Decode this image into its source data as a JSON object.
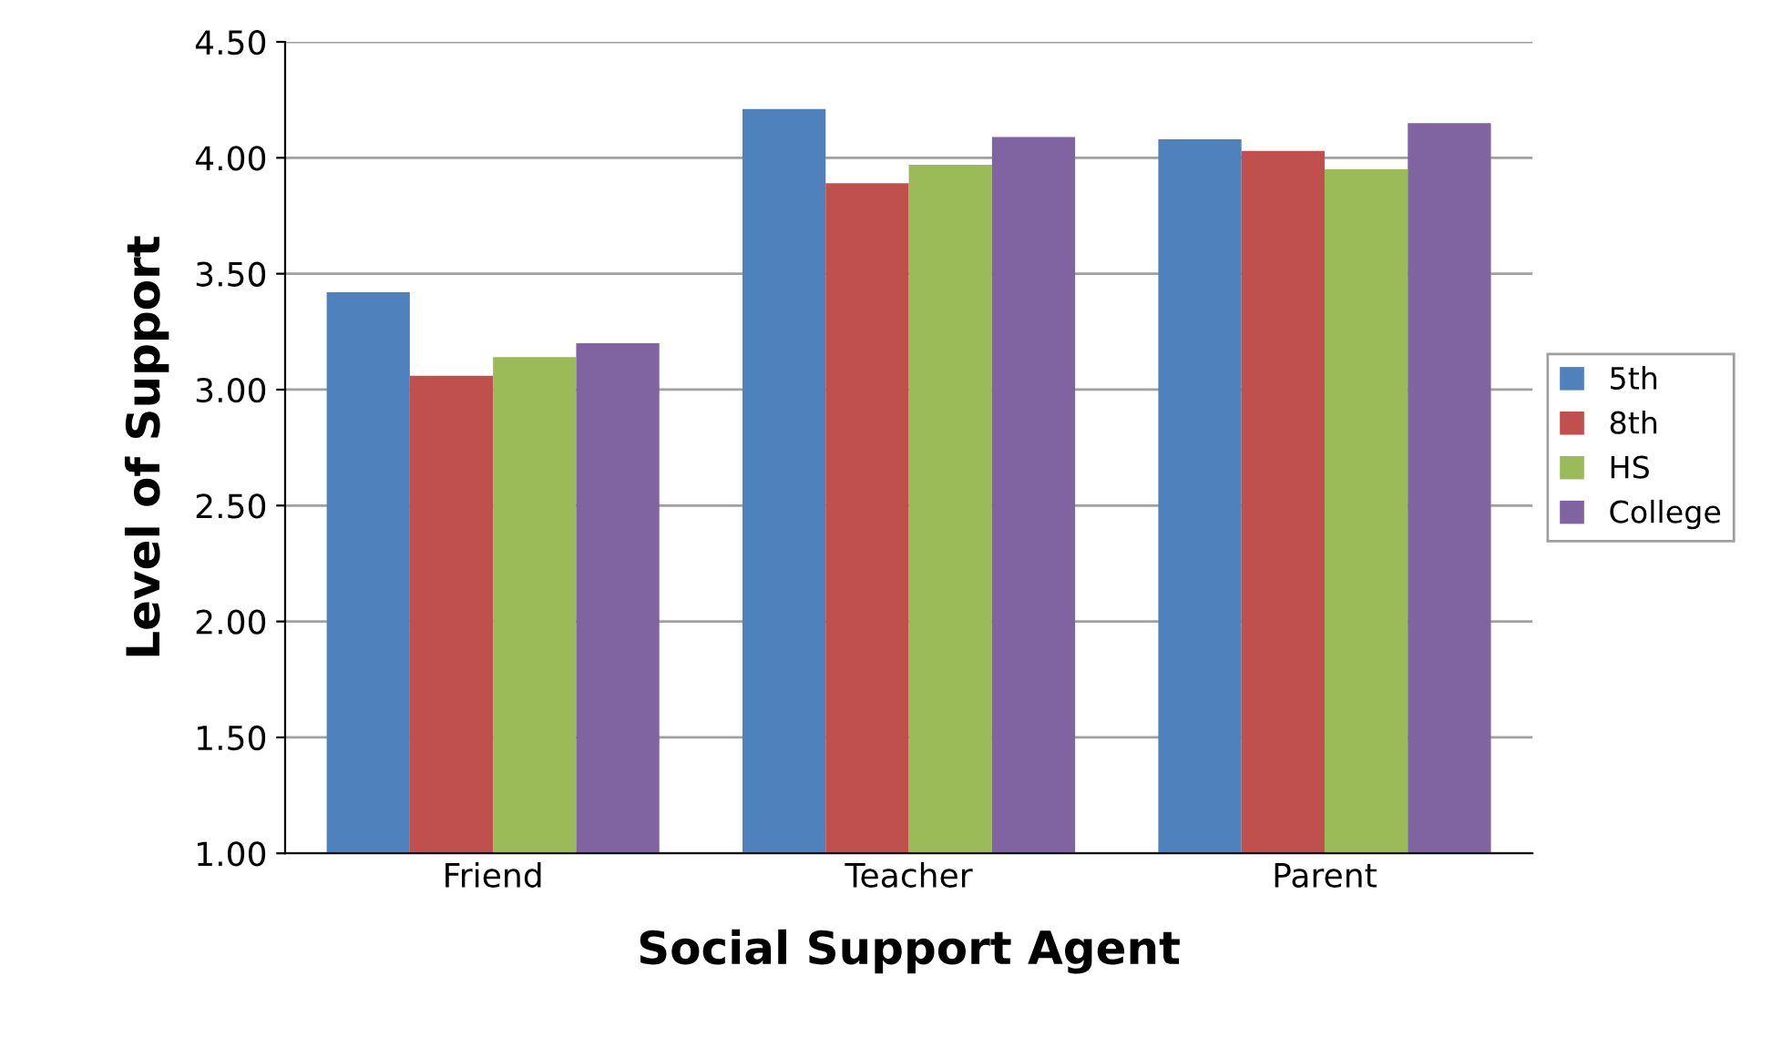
{
  "chart_data": {
    "type": "bar",
    "xlabel": "Social Support Agent",
    "ylabel": "Level of Support",
    "categories": [
      "Friend",
      "Teacher",
      "Parent"
    ],
    "series": [
      {
        "name": "5th",
        "color": "#4f81bd",
        "values": [
          3.42,
          4.21,
          4.08
        ]
      },
      {
        "name": "8th",
        "color": "#c0504d",
        "values": [
          3.06,
          3.89,
          4.03
        ]
      },
      {
        "name": "HS",
        "color": "#9bbb59",
        "values": [
          3.14,
          3.97,
          3.95
        ]
      },
      {
        "name": "College",
        "color": "#8064a2",
        "values": [
          3.2,
          4.09,
          4.15
        ]
      }
    ],
    "ylim": [
      1.0,
      4.5
    ],
    "yticks": [
      {
        "value": 1.0,
        "label": "1.00"
      },
      {
        "value": 1.5,
        "label": "1.50"
      },
      {
        "value": 2.0,
        "label": "2.00"
      },
      {
        "value": 2.5,
        "label": "2.50"
      },
      {
        "value": 3.0,
        "label": "3.00"
      },
      {
        "value": 3.5,
        "label": "3.50"
      },
      {
        "value": 4.0,
        "label": "4.00"
      },
      {
        "value": 4.5,
        "label": "4.50"
      }
    ],
    "grid": "y",
    "legend": "right"
  }
}
